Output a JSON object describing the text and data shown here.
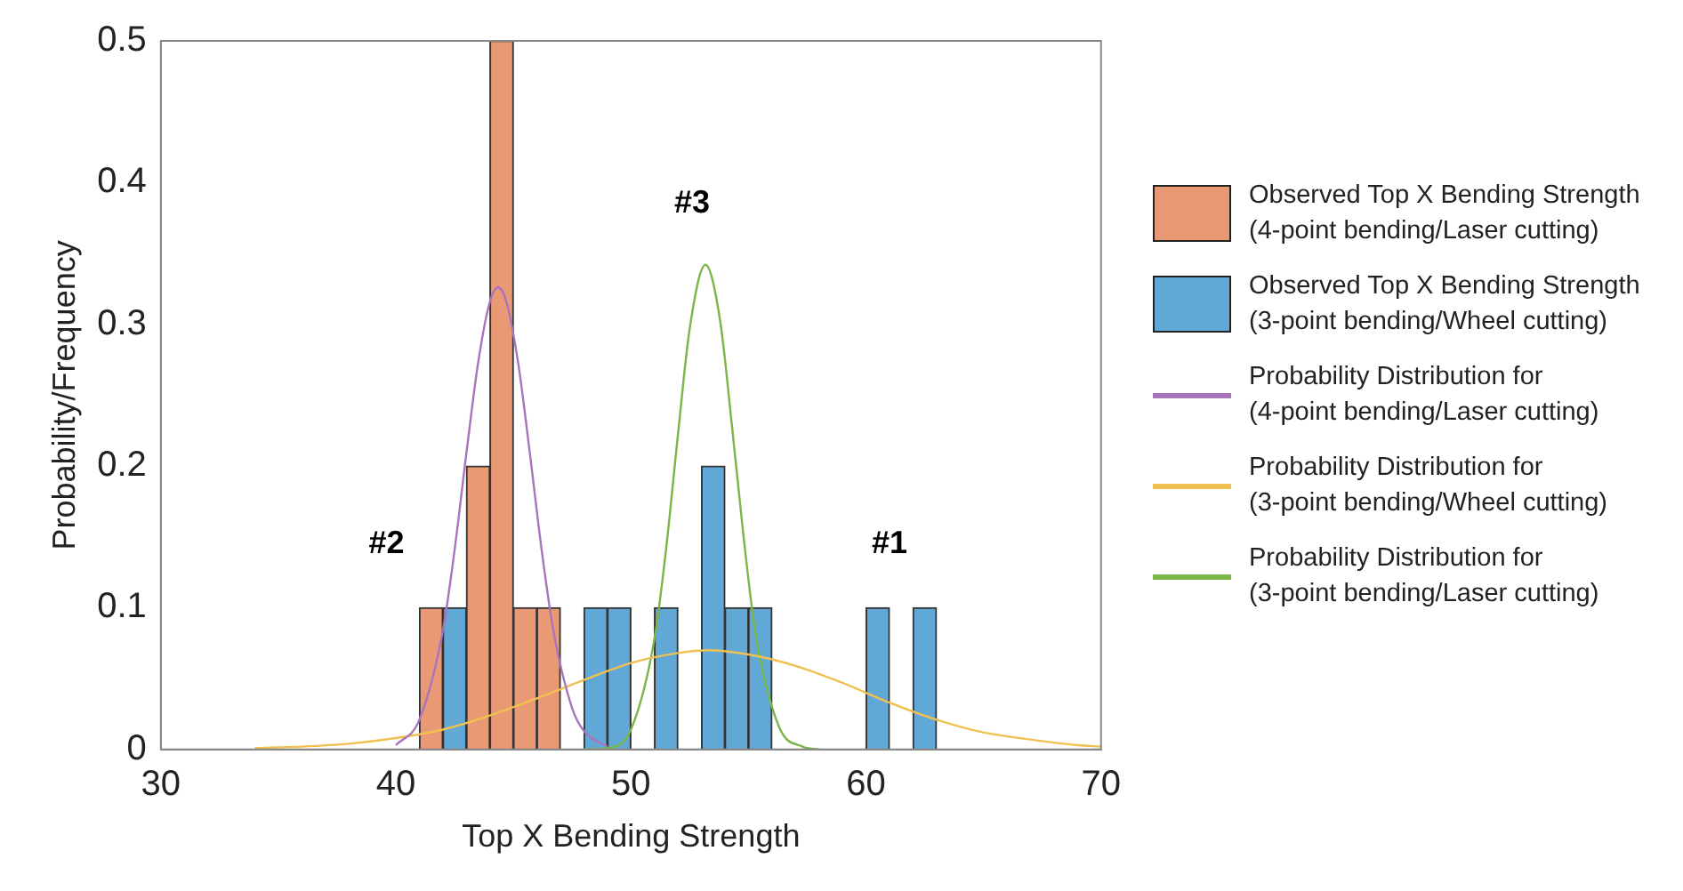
{
  "chart_data": {
    "type": "histogram",
    "xlabel": "Top X Bending Strength",
    "ylabel": "Probability/Frequency",
    "bins": [
      41,
      42,
      43,
      44,
      45,
      46,
      47,
      48,
      49,
      50,
      51,
      52,
      53,
      54,
      55,
      56,
      57,
      58,
      59,
      60,
      61,
      62,
      63
    ],
    "series": [
      {
        "name": "Observed Top X Bending Strength (4-point bending/Laser cutting)",
        "color": "#e99a74",
        "values": [
          0.1,
          0,
          0.2,
          0.5,
          0.1,
          0.1,
          0,
          0,
          0,
          0,
          0,
          0,
          0,
          0,
          0,
          0,
          0,
          0,
          0,
          0,
          0,
          0
        ]
      },
      {
        "name": "Observed Top X Bending Strength (3-point bending/Wheel cutting)",
        "color": "#62a8d6",
        "values": [
          0,
          0.1,
          0,
          0,
          0,
          0,
          0,
          0.1,
          0.1,
          0,
          0.1,
          0,
          0.2,
          0.1,
          0.1,
          0,
          0,
          0,
          0,
          0.1,
          0,
          0.1
        ]
      },
      {
        "type": "line",
        "name": "Probability Distribution for (4-point bending/Laser cutting)",
        "color": "#a875bd",
        "x": [
          40,
          41,
          42,
          42.5,
          43,
          43.5,
          44,
          44.35,
          44.7,
          45.2,
          45.7,
          46.2,
          46.7,
          47.5,
          48,
          49
        ],
        "values": [
          0.003,
          0.021,
          0.084,
          0.141,
          0.209,
          0.273,
          0.316,
          0.326,
          0.316,
          0.273,
          0.209,
          0.141,
          0.084,
          0.029,
          0.013,
          0.002
        ]
      },
      {
        "type": "line",
        "name": "Probability Distribution for (3-point bending/Wheel cutting)",
        "color": "#f0c050",
        "x": [
          34,
          36,
          38,
          40,
          42,
          44,
          46,
          48,
          50,
          52,
          53.3,
          55,
          57,
          59,
          61,
          63,
          65,
          67,
          69,
          70
        ],
        "values": [
          0.001,
          0.002,
          0.004,
          0.008,
          0.014,
          0.024,
          0.036,
          0.049,
          0.061,
          0.068,
          0.07,
          0.067,
          0.059,
          0.047,
          0.033,
          0.021,
          0.012,
          0.007,
          0.003,
          0.002
        ]
      },
      {
        "type": "line",
        "name": "Probability Distribution for (3-point bending/Laser cutting)",
        "color": "#7ab648",
        "x": [
          48,
          49,
          50,
          51,
          51.5,
          52,
          52.5,
          53.17,
          53.8,
          54.3,
          54.8,
          55.3,
          56.3,
          57.3,
          58
        ],
        "values": [
          0,
          0.001,
          0.014,
          0.078,
          0.142,
          0.222,
          0.297,
          0.342,
          0.302,
          0.228,
          0.149,
          0.082,
          0.016,
          0.002,
          0
        ]
      }
    ],
    "xlim": [
      30,
      70
    ],
    "xticks": [
      30,
      40,
      50,
      60,
      70
    ],
    "ylim": [
      0,
      0.5
    ],
    "yticks": [
      0,
      0.1,
      0.2,
      0.3,
      0.4,
      0.5
    ],
    "grid": false,
    "legend": "right",
    "marker": "none",
    "annotations": [
      "#1",
      "#2",
      "#3"
    ]
  }
}
